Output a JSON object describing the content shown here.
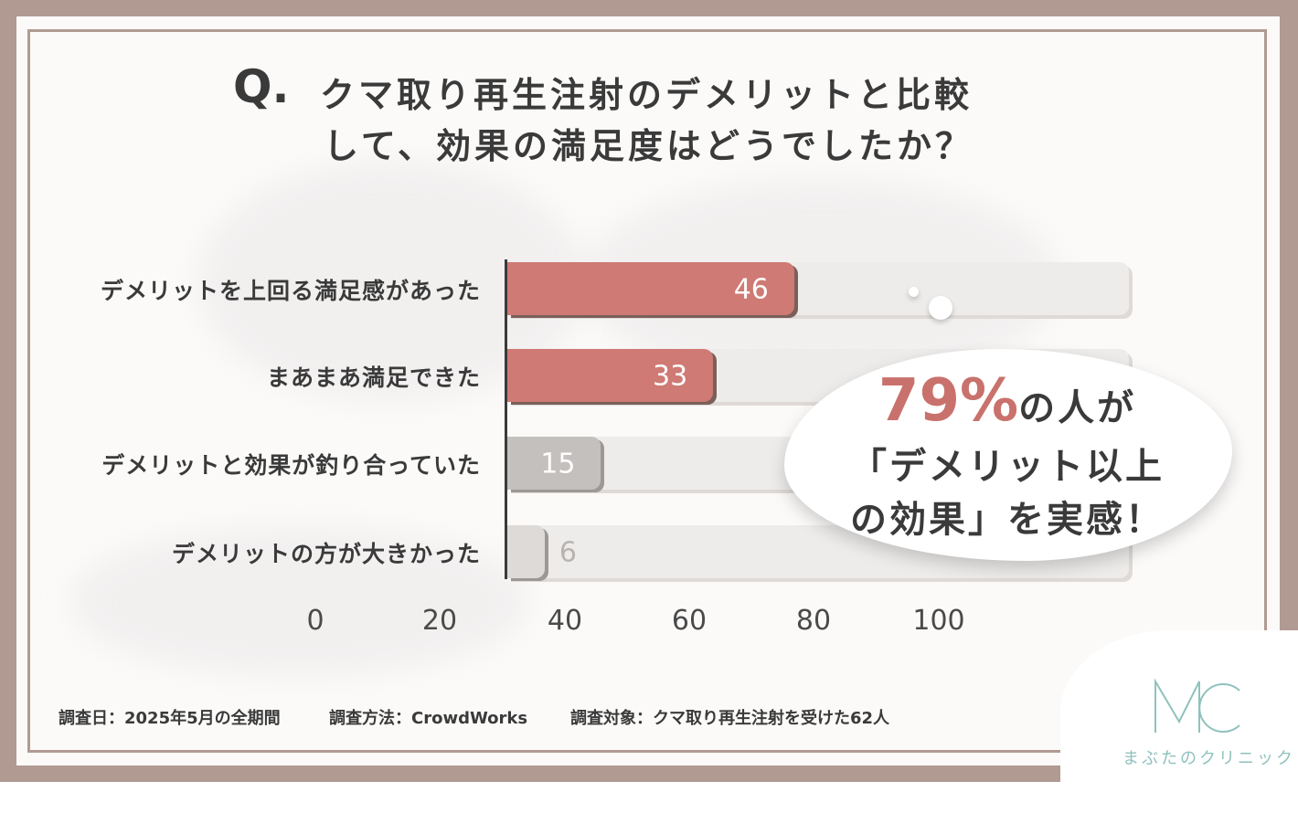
{
  "title": {
    "q_mark": "Q.",
    "line1": "クマ取り再生注射のデメリットと比較",
    "line2": "して、効果の満足度はどうでしたか？"
  },
  "chart_data": {
    "type": "bar",
    "orientation": "horizontal",
    "categories": [
      "デメリットを上回る満足感があった",
      "まあまあ満足できた",
      "デメリットと効果が釣り合っていた",
      "デメリットの方が大きかった"
    ],
    "values": [
      46,
      33,
      15,
      6
    ],
    "value_labels": [
      "46",
      "33",
      "15",
      "6"
    ],
    "bar_colors": [
      "#cf7a74",
      "#cf7a74",
      "#c3c0be",
      "#dddad8"
    ],
    "label_colors": [
      "#ffffff",
      "#ffffff",
      "#ffffff",
      "#b7b3b1"
    ],
    "track_max": 100,
    "x_ticks": [
      "0",
      "20",
      "40",
      "60",
      "80",
      "100"
    ],
    "track_color": "#eeecea",
    "grid": false
  },
  "callout": {
    "percent": "79%",
    "line1_rest": "の人が",
    "line2": "「デメリット以上",
    "line3": "の効果」を実感！"
  },
  "footer": {
    "date": "調査日：2025年5月の全期間",
    "method": "調査方法：CrowdWorks",
    "target": "調査対象：クマ取り再生注射を受けた62人"
  },
  "logo": {
    "letters": "MC",
    "name": "まぶたのクリニック"
  },
  "colors": {
    "frame": "#b09a92",
    "accent": "#cf7a74",
    "logo": "#8fc2bd"
  }
}
